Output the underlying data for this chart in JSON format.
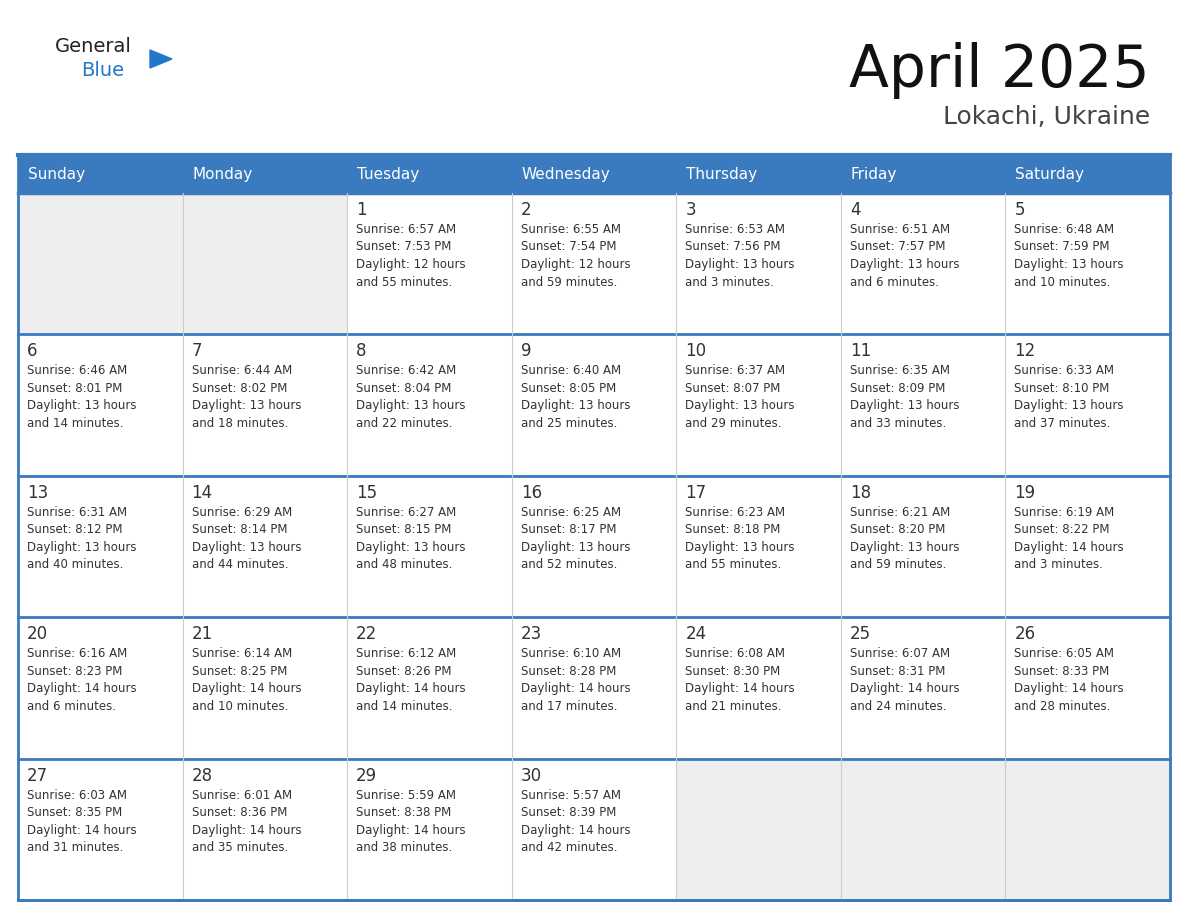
{
  "title": "April 2025",
  "subtitle": "Lokachi, Ukraine",
  "header_color": "#3a7abf",
  "header_text_color": "#ffffff",
  "cell_bg_color": "#ffffff",
  "empty_cell_bg_color": "#eeeeee",
  "cell_border_color": "#3a7abf",
  "row_border_color": "#3a7abf",
  "col_border_color": "#cccccc",
  "day_number_color": "#333333",
  "text_color": "#333333",
  "bg_color": "#ffffff",
  "days_of_week": [
    "Sunday",
    "Monday",
    "Tuesday",
    "Wednesday",
    "Thursday",
    "Friday",
    "Saturday"
  ],
  "logo_general_color": "#222222",
  "logo_blue_color": "#2277cc",
  "calendar_data": [
    [
      {
        "day": null,
        "info": null
      },
      {
        "day": null,
        "info": null
      },
      {
        "day": 1,
        "info": "Sunrise: 6:57 AM\nSunset: 7:53 PM\nDaylight: 12 hours\nand 55 minutes."
      },
      {
        "day": 2,
        "info": "Sunrise: 6:55 AM\nSunset: 7:54 PM\nDaylight: 12 hours\nand 59 minutes."
      },
      {
        "day": 3,
        "info": "Sunrise: 6:53 AM\nSunset: 7:56 PM\nDaylight: 13 hours\nand 3 minutes."
      },
      {
        "day": 4,
        "info": "Sunrise: 6:51 AM\nSunset: 7:57 PM\nDaylight: 13 hours\nand 6 minutes."
      },
      {
        "day": 5,
        "info": "Sunrise: 6:48 AM\nSunset: 7:59 PM\nDaylight: 13 hours\nand 10 minutes."
      }
    ],
    [
      {
        "day": 6,
        "info": "Sunrise: 6:46 AM\nSunset: 8:01 PM\nDaylight: 13 hours\nand 14 minutes."
      },
      {
        "day": 7,
        "info": "Sunrise: 6:44 AM\nSunset: 8:02 PM\nDaylight: 13 hours\nand 18 minutes."
      },
      {
        "day": 8,
        "info": "Sunrise: 6:42 AM\nSunset: 8:04 PM\nDaylight: 13 hours\nand 22 minutes."
      },
      {
        "day": 9,
        "info": "Sunrise: 6:40 AM\nSunset: 8:05 PM\nDaylight: 13 hours\nand 25 minutes."
      },
      {
        "day": 10,
        "info": "Sunrise: 6:37 AM\nSunset: 8:07 PM\nDaylight: 13 hours\nand 29 minutes."
      },
      {
        "day": 11,
        "info": "Sunrise: 6:35 AM\nSunset: 8:09 PM\nDaylight: 13 hours\nand 33 minutes."
      },
      {
        "day": 12,
        "info": "Sunrise: 6:33 AM\nSunset: 8:10 PM\nDaylight: 13 hours\nand 37 minutes."
      }
    ],
    [
      {
        "day": 13,
        "info": "Sunrise: 6:31 AM\nSunset: 8:12 PM\nDaylight: 13 hours\nand 40 minutes."
      },
      {
        "day": 14,
        "info": "Sunrise: 6:29 AM\nSunset: 8:14 PM\nDaylight: 13 hours\nand 44 minutes."
      },
      {
        "day": 15,
        "info": "Sunrise: 6:27 AM\nSunset: 8:15 PM\nDaylight: 13 hours\nand 48 minutes."
      },
      {
        "day": 16,
        "info": "Sunrise: 6:25 AM\nSunset: 8:17 PM\nDaylight: 13 hours\nand 52 minutes."
      },
      {
        "day": 17,
        "info": "Sunrise: 6:23 AM\nSunset: 8:18 PM\nDaylight: 13 hours\nand 55 minutes."
      },
      {
        "day": 18,
        "info": "Sunrise: 6:21 AM\nSunset: 8:20 PM\nDaylight: 13 hours\nand 59 minutes."
      },
      {
        "day": 19,
        "info": "Sunrise: 6:19 AM\nSunset: 8:22 PM\nDaylight: 14 hours\nand 3 minutes."
      }
    ],
    [
      {
        "day": 20,
        "info": "Sunrise: 6:16 AM\nSunset: 8:23 PM\nDaylight: 14 hours\nand 6 minutes."
      },
      {
        "day": 21,
        "info": "Sunrise: 6:14 AM\nSunset: 8:25 PM\nDaylight: 14 hours\nand 10 minutes."
      },
      {
        "day": 22,
        "info": "Sunrise: 6:12 AM\nSunset: 8:26 PM\nDaylight: 14 hours\nand 14 minutes."
      },
      {
        "day": 23,
        "info": "Sunrise: 6:10 AM\nSunset: 8:28 PM\nDaylight: 14 hours\nand 17 minutes."
      },
      {
        "day": 24,
        "info": "Sunrise: 6:08 AM\nSunset: 8:30 PM\nDaylight: 14 hours\nand 21 minutes."
      },
      {
        "day": 25,
        "info": "Sunrise: 6:07 AM\nSunset: 8:31 PM\nDaylight: 14 hours\nand 24 minutes."
      },
      {
        "day": 26,
        "info": "Sunrise: 6:05 AM\nSunset: 8:33 PM\nDaylight: 14 hours\nand 28 minutes."
      }
    ],
    [
      {
        "day": 27,
        "info": "Sunrise: 6:03 AM\nSunset: 8:35 PM\nDaylight: 14 hours\nand 31 minutes."
      },
      {
        "day": 28,
        "info": "Sunrise: 6:01 AM\nSunset: 8:36 PM\nDaylight: 14 hours\nand 35 minutes."
      },
      {
        "day": 29,
        "info": "Sunrise: 5:59 AM\nSunset: 8:38 PM\nDaylight: 14 hours\nand 38 minutes."
      },
      {
        "day": 30,
        "info": "Sunrise: 5:57 AM\nSunset: 8:39 PM\nDaylight: 14 hours\nand 42 minutes."
      },
      {
        "day": null,
        "info": null
      },
      {
        "day": null,
        "info": null
      },
      {
        "day": null,
        "info": null
      }
    ]
  ]
}
